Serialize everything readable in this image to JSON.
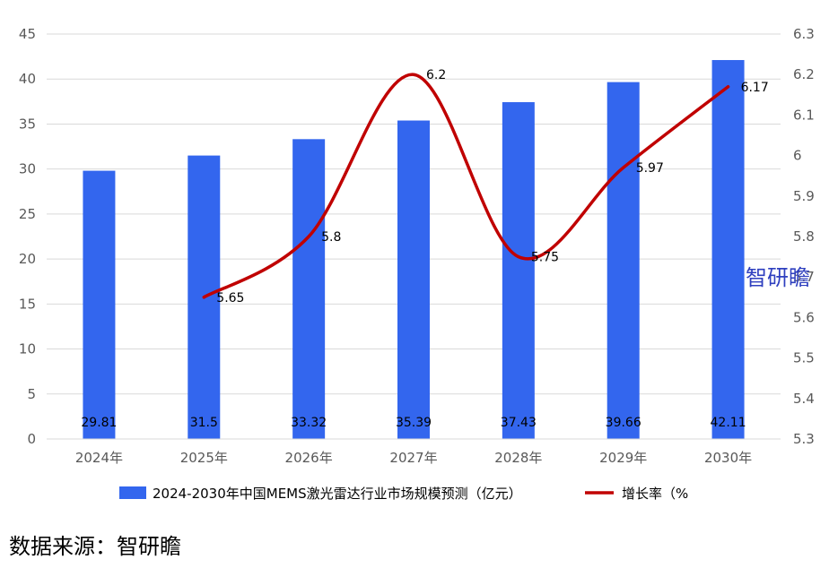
{
  "chart_data": {
    "type": "bar",
    "categories": [
      "2024年",
      "2025年",
      "2026年",
      "2027年",
      "2028年",
      "2029年",
      "2030年"
    ],
    "series": [
      {
        "name": "2024-2030年中国MEMS激光雷达行业市场规模预测（亿元）",
        "type": "bar",
        "axis": "left",
        "values": [
          29.81,
          31.5,
          33.32,
          35.39,
          37.43,
          39.66,
          42.11
        ],
        "labels": [
          "29.81",
          "31.5",
          "33.32",
          "35.39",
          "37.43",
          "39.66",
          "42.11"
        ],
        "color": "#3366ee"
      },
      {
        "name": "增长率（%",
        "type": "line",
        "axis": "right",
        "values": [
          null,
          5.65,
          5.8,
          6.2,
          5.75,
          5.97,
          6.17
        ],
        "labels": [
          "",
          "5.65",
          "5.8",
          "6.2",
          "5.75",
          "5.97",
          "6.17"
        ],
        "color": "#c00000"
      }
    ],
    "y_left": {
      "ylim": [
        0,
        45
      ],
      "ticks": [
        "0",
        "5",
        "10",
        "15",
        "20",
        "25",
        "30",
        "35",
        "40",
        "45"
      ]
    },
    "y_right": {
      "ylim": [
        5.3,
        6.3
      ],
      "ticks": [
        "5.3",
        "5.4",
        "5.5",
        "5.6",
        "5.7",
        "5.8",
        "5.9",
        "6",
        "6.1",
        "6.2",
        "6.3"
      ]
    },
    "grid": true,
    "legend_position": "bottom"
  },
  "watermark": "智研瞻",
  "source": "数据来源：智研瞻"
}
